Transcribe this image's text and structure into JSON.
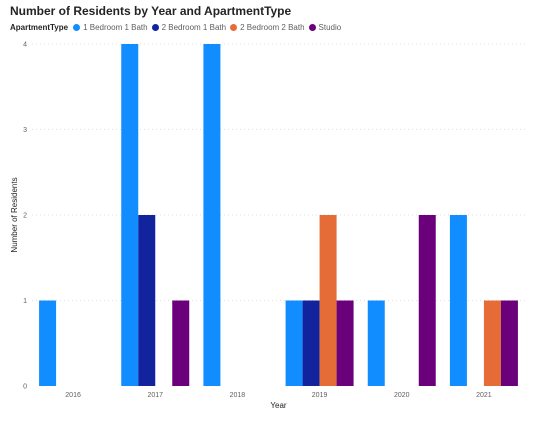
{
  "chart_data": {
    "type": "bar",
    "title": "Number of Residents by Year and ApartmentType",
    "legend_title": "ApartmentType",
    "legend_position": "top-left",
    "xlabel": "Year",
    "ylabel": "Number of Residents",
    "categories": [
      "2016",
      "2017",
      "2018",
      "2019",
      "2020",
      "2021"
    ],
    "ylim": [
      0,
      4
    ],
    "yticks": [
      "0",
      "1",
      "2",
      "3",
      "4"
    ],
    "grid": true,
    "series": [
      {
        "name": "1 Bedroom 1 Bath",
        "color": "#118dff",
        "values": [
          1,
          4,
          4,
          1,
          1,
          2
        ]
      },
      {
        "name": "2 Bedroom 1 Bath",
        "color": "#12239e",
        "values": [
          null,
          2,
          null,
          1,
          null,
          null
        ]
      },
      {
        "name": "2 Bedroom 2 Bath",
        "color": "#e66c37",
        "values": [
          null,
          null,
          null,
          2,
          null,
          1
        ]
      },
      {
        "name": "Studio",
        "color": "#6b007b",
        "values": [
          null,
          1,
          null,
          1,
          2,
          1
        ]
      }
    ]
  }
}
